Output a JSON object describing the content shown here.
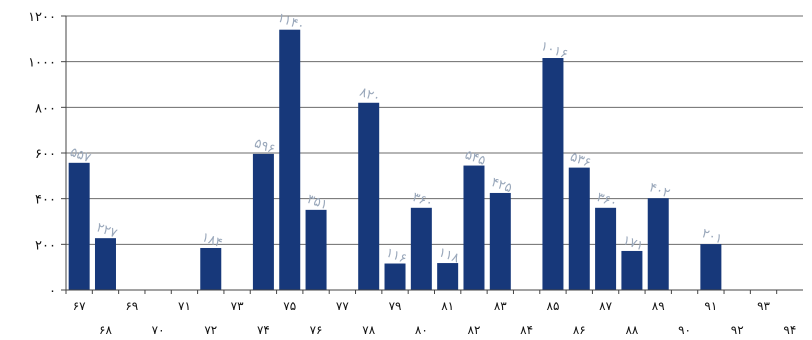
{
  "chart_data": {
    "type": "bar",
    "title": "",
    "xlabel": "",
    "ylabel": "",
    "ylim": [
      0,
      1200
    ],
    "y_ticks": [
      0,
      200,
      400,
      600,
      800,
      1000,
      1200
    ],
    "y_tick_labels": [
      "۰",
      "۲۰۰",
      "۴۰۰",
      "۶۰۰",
      "۸۰۰",
      "۱۰۰۰",
      "۱۲۰۰"
    ],
    "grid": true,
    "legend": "none",
    "bar_color": "#17387a",
    "label_color": "#9aa8bb",
    "categories": [
      "67",
      "68",
      "69",
      "70",
      "71",
      "72",
      "73",
      "74",
      "75",
      "76",
      "77",
      "78",
      "79",
      "80",
      "81",
      "82",
      "83",
      "84",
      "85",
      "86",
      "87",
      "88",
      "89",
      "90",
      "91",
      "92",
      "93",
      "94"
    ],
    "category_labels": [
      "۶۷",
      "۶۸",
      "۶۹",
      "۷۰",
      "۷۱",
      "۷۲",
      "۷۳",
      "۷۴",
      "۷۵",
      "۷۶",
      "۷۷",
      "۷۸",
      "۷۹",
      "۸۰",
      "۸۱",
      "۸۲",
      "۸۳",
      "۸۴",
      "۸۵",
      "۸۶",
      "۸۷",
      "۸۸",
      "۸۹",
      "۹۰",
      "۹۱",
      "۹۲",
      "۹۳",
      "۹۴"
    ],
    "values": [
      557,
      227,
      null,
      null,
      null,
      184,
      null,
      596,
      1140,
      351,
      null,
      820,
      116,
      360,
      118,
      545,
      425,
      null,
      1016,
      536,
      360,
      171,
      402,
      null,
      201,
      null,
      null,
      null
    ],
    "data_labels": [
      "۵۵۷",
      "۲۲۷",
      "",
      "",
      "",
      "۱۸۴",
      "",
      "۵۹۶",
      "۱۱۴۰",
      "۳۵۱",
      "",
      "۸۲۰",
      "۱۱۶",
      "۳۶۰",
      "۱۱۸",
      "۵۴۵",
      "۴۲۵",
      "",
      "۱۰۱۶",
      "۵۳۶",
      "۳۶۰",
      "۱۷۱",
      "۴۰۲",
      "",
      "۲۰۱",
      "",
      "",
      ""
    ]
  }
}
